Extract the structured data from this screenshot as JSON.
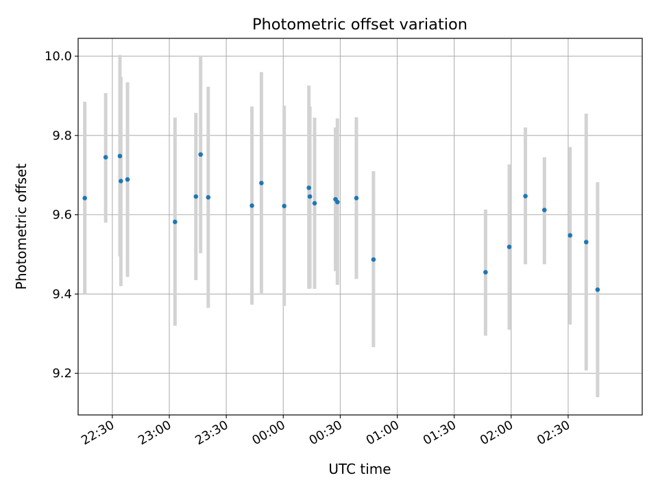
{
  "colors": {
    "point": "#1f77b4",
    "errorbar": "#d3d3d3",
    "grid": "#b0b0b0",
    "axis": "#000000"
  },
  "chart_data": {
    "type": "scatter",
    "title": "Photometric offset variation",
    "xlabel": "UTC time",
    "ylabel": "Photometric offset",
    "x_unit": "minutes relative to 00:00 UTC",
    "xlim": [
      -108,
      189
    ],
    "ylim": [
      9.095,
      10.045
    ],
    "grid": true,
    "legend": "none",
    "x_ticks": [
      {
        "value": -90,
        "label": "22:30"
      },
      {
        "value": -60,
        "label": "23:00"
      },
      {
        "value": -30,
        "label": "23:30"
      },
      {
        "value": 0,
        "label": "00:00"
      },
      {
        "value": 30,
        "label": "00:30"
      },
      {
        "value": 60,
        "label": "01:00"
      },
      {
        "value": 90,
        "label": "01:30"
      },
      {
        "value": 120,
        "label": "02:00"
      },
      {
        "value": 150,
        "label": "02:30"
      }
    ],
    "y_ticks": [
      {
        "value": 9.2,
        "label": "9.2"
      },
      {
        "value": 9.4,
        "label": "9.4"
      },
      {
        "value": 9.6,
        "label": "9.6"
      },
      {
        "value": 9.8,
        "label": "9.8"
      },
      {
        "value": 10.0,
        "label": "10.0"
      }
    ],
    "points": [
      {
        "x": -104.5,
        "y": 9.642,
        "ylo": 9.4,
        "yhi": 9.885
      },
      {
        "x": -93.5,
        "y": 9.745,
        "ylo": 9.58,
        "yhi": 9.907
      },
      {
        "x": -86.0,
        "y": 9.748,
        "ylo": 9.495,
        "yhi": 10.003
      },
      {
        "x": -85.5,
        "y": 9.685,
        "ylo": 9.42,
        "yhi": 9.948
      },
      {
        "x": -82.0,
        "y": 9.689,
        "ylo": 9.443,
        "yhi": 9.934
      },
      {
        "x": -57.0,
        "y": 9.582,
        "ylo": 9.32,
        "yhi": 9.845
      },
      {
        "x": -46.0,
        "y": 9.646,
        "ylo": 9.435,
        "yhi": 9.857
      },
      {
        "x": -43.5,
        "y": 9.752,
        "ylo": 9.503,
        "yhi": 10.0
      },
      {
        "x": -39.5,
        "y": 9.644,
        "ylo": 9.365,
        "yhi": 9.923
      },
      {
        "x": -16.5,
        "y": 9.623,
        "ylo": 9.373,
        "yhi": 9.873
      },
      {
        "x": -11.5,
        "y": 9.68,
        "ylo": 9.402,
        "yhi": 9.96
      },
      {
        "x": 0.5,
        "y": 9.622,
        "ylo": 9.37,
        "yhi": 9.875
      },
      {
        "x": 13.5,
        "y": 9.668,
        "ylo": 9.413,
        "yhi": 9.926
      },
      {
        "x": 14.0,
        "y": 9.646,
        "ylo": 9.414,
        "yhi": 9.873
      },
      {
        "x": 16.5,
        "y": 9.629,
        "ylo": 9.413,
        "yhi": 9.845
      },
      {
        "x": 27.5,
        "y": 9.639,
        "ylo": 9.458,
        "yhi": 9.82
      },
      {
        "x": 28.5,
        "y": 9.632,
        "ylo": 9.423,
        "yhi": 9.843
      },
      {
        "x": 38.5,
        "y": 9.642,
        "ylo": 9.438,
        "yhi": 9.846
      },
      {
        "x": 47.5,
        "y": 9.487,
        "ylo": 9.266,
        "yhi": 9.71
      },
      {
        "x": 106.5,
        "y": 9.455,
        "ylo": 9.295,
        "yhi": 9.613
      },
      {
        "x": 119.0,
        "y": 9.519,
        "ylo": 9.31,
        "yhi": 9.727
      },
      {
        "x": 127.5,
        "y": 9.647,
        "ylo": 9.475,
        "yhi": 9.82
      },
      {
        "x": 137.5,
        "y": 9.612,
        "ylo": 9.475,
        "yhi": 9.745
      },
      {
        "x": 151.0,
        "y": 9.548,
        "ylo": 9.323,
        "yhi": 9.771
      },
      {
        "x": 159.5,
        "y": 9.531,
        "ylo": 9.207,
        "yhi": 9.855
      },
      {
        "x": 165.5,
        "y": 9.411,
        "ylo": 9.14,
        "yhi": 9.682
      }
    ]
  }
}
